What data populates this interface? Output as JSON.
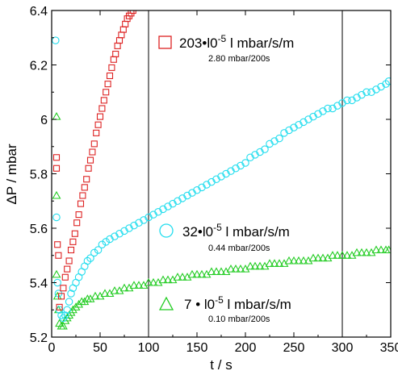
{
  "chart_data": {
    "type": "scatter",
    "xlabel": "t / s",
    "ylabel": "ΔP / mbar",
    "xlim": [
      0,
      350
    ],
    "ylim": [
      5.2,
      6.4
    ],
    "x_ticks": [
      0,
      50,
      100,
      150,
      200,
      250,
      300,
      350
    ],
    "y_ticks": [
      5.2,
      5.4,
      5.6,
      5.8,
      6.0,
      6.2,
      6.4
    ],
    "x_tick_labels": [
      "0",
      "50",
      "100",
      "150",
      "200",
      "250",
      "300",
      "350"
    ],
    "y_tick_labels": [
      "5.2",
      "5.4",
      "5.6",
      "5.8",
      "6",
      "6.2",
      "6.4"
    ],
    "vertical_lines": [
      100,
      300
    ],
    "series": [
      {
        "rate_value": "203",
        "rate_mult": "•l0",
        "rate_exp": "-5",
        "rate_unit": " l mbar/s/m",
        "subtitle": "2.80 mbar/200s",
        "marker": "square",
        "color": "#dd2222",
        "points": [
          [
            8,
            5.31
          ],
          [
            10,
            5.35
          ],
          [
            12,
            5.38
          ],
          [
            14,
            5.42
          ],
          [
            16,
            5.45
          ],
          [
            18,
            5.48
          ],
          [
            20,
            5.52
          ],
          [
            22,
            5.55
          ],
          [
            24,
            5.58
          ],
          [
            26,
            5.62
          ],
          [
            28,
            5.65
          ],
          [
            30,
            5.69
          ],
          [
            32,
            5.72
          ],
          [
            34,
            5.75
          ],
          [
            36,
            5.78
          ],
          [
            38,
            5.82
          ],
          [
            40,
            5.85
          ],
          [
            42,
            5.88
          ],
          [
            44,
            5.91
          ],
          [
            46,
            5.95
          ],
          [
            48,
            5.98
          ],
          [
            50,
            6.01
          ],
          [
            52,
            6.04
          ],
          [
            54,
            6.07
          ],
          [
            56,
            6.1
          ],
          [
            58,
            6.13
          ],
          [
            60,
            6.16
          ],
          [
            62,
            6.19
          ],
          [
            64,
            6.22
          ],
          [
            66,
            6.24
          ],
          [
            68,
            6.27
          ],
          [
            70,
            6.29
          ],
          [
            72,
            6.31
          ],
          [
            74,
            6.33
          ],
          [
            76,
            6.35
          ],
          [
            78,
            6.37
          ],
          [
            80,
            6.38
          ],
          [
            82,
            6.39
          ],
          [
            84,
            6.4
          ]
        ],
        "outliers": [
          [
            5,
            5.86
          ],
          [
            5,
            5.82
          ],
          [
            6,
            5.54
          ],
          [
            7,
            5.5
          ]
        ]
      },
      {
        "rate_value": "32",
        "rate_mult": "•l0",
        "rate_exp": "-5",
        "rate_unit": " l mbar/s/m",
        "subtitle": "0.44 mbar/200s",
        "marker": "circle",
        "color": "#22ddee",
        "points": [
          [
            8,
            5.3
          ],
          [
            10,
            5.28
          ],
          [
            12,
            5.27
          ],
          [
            14,
            5.28
          ],
          [
            16,
            5.3
          ],
          [
            18,
            5.33
          ],
          [
            20,
            5.36
          ],
          [
            22,
            5.38
          ],
          [
            25,
            5.4
          ],
          [
            28,
            5.42
          ],
          [
            31,
            5.44
          ],
          [
            34,
            5.46
          ],
          [
            37,
            5.48
          ],
          [
            40,
            5.49
          ],
          [
            44,
            5.51
          ],
          [
            48,
            5.52
          ],
          [
            52,
            5.54
          ],
          [
            56,
            5.55
          ],
          [
            60,
            5.56
          ],
          [
            65,
            5.57
          ],
          [
            70,
            5.58
          ],
          [
            75,
            5.59
          ],
          [
            80,
            5.6
          ],
          [
            85,
            5.61
          ],
          [
            90,
            5.62
          ],
          [
            95,
            5.63
          ],
          [
            100,
            5.64
          ],
          [
            105,
            5.65
          ],
          [
            110,
            5.66
          ],
          [
            115,
            5.67
          ],
          [
            120,
            5.68
          ],
          [
            125,
            5.69
          ],
          [
            130,
            5.7
          ],
          [
            135,
            5.71
          ],
          [
            140,
            5.72
          ],
          [
            145,
            5.73
          ],
          [
            150,
            5.74
          ],
          [
            155,
            5.75
          ],
          [
            160,
            5.76
          ],
          [
            165,
            5.77
          ],
          [
            170,
            5.78
          ],
          [
            175,
            5.79
          ],
          [
            180,
            5.8
          ],
          [
            185,
            5.81
          ],
          [
            190,
            5.82
          ],
          [
            195,
            5.83
          ],
          [
            200,
            5.84
          ],
          [
            205,
            5.86
          ],
          [
            210,
            5.87
          ],
          [
            215,
            5.88
          ],
          [
            220,
            5.89
          ],
          [
            225,
            5.91
          ],
          [
            230,
            5.92
          ],
          [
            235,
            5.93
          ],
          [
            240,
            5.95
          ],
          [
            245,
            5.96
          ],
          [
            250,
            5.97
          ],
          [
            255,
            5.98
          ],
          [
            260,
            5.99
          ],
          [
            265,
            6.0
          ],
          [
            270,
            6.01
          ],
          [
            275,
            6.02
          ],
          [
            280,
            6.03
          ],
          [
            285,
            6.04
          ],
          [
            290,
            6.04
          ],
          [
            295,
            6.05
          ],
          [
            300,
            6.06
          ],
          [
            305,
            6.07
          ],
          [
            310,
            6.07
          ],
          [
            315,
            6.08
          ],
          [
            320,
            6.09
          ],
          [
            325,
            6.1
          ],
          [
            330,
            6.1
          ],
          [
            335,
            6.11
          ],
          [
            340,
            6.12
          ],
          [
            345,
            6.13
          ],
          [
            348,
            6.14
          ]
        ],
        "outliers": [
          [
            4,
            6.29
          ],
          [
            5,
            5.64
          ],
          [
            6,
            5.4
          ],
          [
            7,
            5.36
          ]
        ]
      },
      {
        "rate_value": "7",
        "rate_mult": " • l0",
        "rate_exp": "-5",
        "rate_unit": " l mbar/s/m",
        "subtitle": "0.10 mbar/200s",
        "marker": "triangle",
        "color": "#22cc22",
        "points": [
          [
            8,
            5.25
          ],
          [
            10,
            5.24
          ],
          [
            12,
            5.24
          ],
          [
            14,
            5.26
          ],
          [
            16,
            5.27
          ],
          [
            18,
            5.28
          ],
          [
            20,
            5.29
          ],
          [
            22,
            5.3
          ],
          [
            25,
            5.31
          ],
          [
            28,
            5.32
          ],
          [
            31,
            5.33
          ],
          [
            34,
            5.33
          ],
          [
            37,
            5.34
          ],
          [
            40,
            5.34
          ],
          [
            45,
            5.35
          ],
          [
            50,
            5.35
          ],
          [
            55,
            5.36
          ],
          [
            60,
            5.36
          ],
          [
            65,
            5.37
          ],
          [
            70,
            5.37
          ],
          [
            75,
            5.38
          ],
          [
            80,
            5.38
          ],
          [
            85,
            5.39
          ],
          [
            90,
            5.39
          ],
          [
            95,
            5.39
          ],
          [
            100,
            5.4
          ],
          [
            105,
            5.4
          ],
          [
            110,
            5.4
          ],
          [
            115,
            5.41
          ],
          [
            120,
            5.41
          ],
          [
            125,
            5.41
          ],
          [
            130,
            5.42
          ],
          [
            135,
            5.42
          ],
          [
            140,
            5.42
          ],
          [
            145,
            5.43
          ],
          [
            150,
            5.43
          ],
          [
            155,
            5.43
          ],
          [
            160,
            5.43
          ],
          [
            165,
            5.44
          ],
          [
            170,
            5.44
          ],
          [
            175,
            5.44
          ],
          [
            180,
            5.44
          ],
          [
            185,
            5.45
          ],
          [
            190,
            5.45
          ],
          [
            195,
            5.45
          ],
          [
            200,
            5.45
          ],
          [
            205,
            5.46
          ],
          [
            210,
            5.46
          ],
          [
            215,
            5.46
          ],
          [
            220,
            5.46
          ],
          [
            225,
            5.47
          ],
          [
            230,
            5.47
          ],
          [
            235,
            5.47
          ],
          [
            240,
            5.47
          ],
          [
            245,
            5.48
          ],
          [
            250,
            5.48
          ],
          [
            255,
            5.48
          ],
          [
            260,
            5.48
          ],
          [
            265,
            5.48
          ],
          [
            270,
            5.49
          ],
          [
            275,
            5.49
          ],
          [
            280,
            5.49
          ],
          [
            285,
            5.49
          ],
          [
            290,
            5.5
          ],
          [
            295,
            5.5
          ],
          [
            300,
            5.5
          ],
          [
            305,
            5.5
          ],
          [
            310,
            5.5
          ],
          [
            315,
            5.51
          ],
          [
            320,
            5.51
          ],
          [
            325,
            5.51
          ],
          [
            330,
            5.51
          ],
          [
            335,
            5.52
          ],
          [
            340,
            5.52
          ],
          [
            345,
            5.52
          ],
          [
            348,
            5.52
          ]
        ],
        "outliers": [
          [
            5,
            6.01
          ],
          [
            5,
            5.72
          ],
          [
            5,
            5.43
          ],
          [
            6,
            5.35
          ],
          [
            7,
            5.3
          ]
        ]
      }
    ]
  }
}
